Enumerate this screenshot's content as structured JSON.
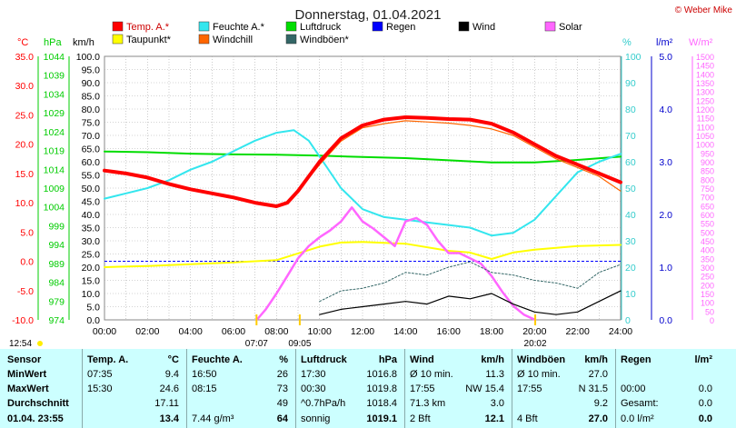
{
  "chart_data": {
    "type": "line",
    "title": "Donnerstag, 01.04.2021",
    "credit": "© Weber Mike",
    "x_ticks": [
      "00:00",
      "02:00",
      "04:00",
      "06:00",
      "08:00",
      "10:00",
      "12:00",
      "14:00",
      "16:00",
      "18:00",
      "20:00",
      "22:00",
      "24:00"
    ],
    "xlim": [
      0,
      24
    ],
    "axes": {
      "temp_c": {
        "label": "°C",
        "ylim": [
          -10,
          35
        ],
        "ticks": [
          "35.0",
          "30.0",
          "25.0",
          "20.0",
          "15.0",
          "10.0",
          "5.0",
          "0.0",
          "-5.0",
          "-10.0"
        ]
      },
      "hpa": {
        "label": "hPa",
        "ylim": [
          974,
          1046
        ],
        "ticks": [
          "1044",
          "1039",
          "1034",
          "1029",
          "1024",
          "1019",
          "1014",
          "1009",
          "1004",
          "999",
          "994",
          "989",
          "984",
          "979",
          "974"
        ]
      },
      "kmh": {
        "label": "km/h",
        "ylim": [
          0,
          100
        ],
        "ticks": [
          "100.0",
          "95.0",
          "90.0",
          "85.0",
          "80.0",
          "75.0",
          "70.0",
          "65.0",
          "60.0",
          "55.0",
          "50.0",
          "45.0",
          "40.0",
          "35.0",
          "30.0",
          "25.0",
          "20.0",
          "15.0",
          "10.0",
          "5.0",
          "0.0"
        ]
      },
      "percent": {
        "label": "%",
        "ylim": [
          0,
          100
        ],
        "ticks": [
          "100",
          "90",
          "80",
          "70",
          "60",
          "50",
          "40",
          "30",
          "20",
          "10",
          "0"
        ]
      },
      "rain": {
        "label": "l/m²",
        "ylim": [
          0,
          5
        ],
        "ticks": [
          "5.0",
          "4.0",
          "3.0",
          "2.0",
          "1.0",
          "0.0"
        ]
      },
      "solar": {
        "label": "W/m²",
        "ylim": [
          0,
          1500
        ],
        "ticks": [
          "1500",
          "1450",
          "1400",
          "1350",
          "1300",
          "1250",
          "1200",
          "1150",
          "1100",
          "1050",
          "1000",
          "950",
          "900",
          "850",
          "800",
          "750",
          "700",
          "650",
          "600",
          "550",
          "500",
          "450",
          "400",
          "350",
          "300",
          "250",
          "200",
          "150",
          "100",
          "50",
          "0"
        ]
      }
    },
    "legend": [
      {
        "name": "Temp. A.*",
        "color": "#ff0000"
      },
      {
        "name": "Feuchte A.*",
        "color": "#33e6ee"
      },
      {
        "name": "Luftdruck",
        "color": "#00dd00"
      },
      {
        "name": "Regen",
        "color": "#0000ff"
      },
      {
        "name": "Wind",
        "color": "#000000"
      },
      {
        "name": "Solar",
        "color": "#ff66ff"
      },
      {
        "name": "Taupunkt*",
        "color": "#ffff00"
      },
      {
        "name": "Windchill",
        "color": "#ff6600"
      },
      {
        "name": "Windböen*",
        "color": "#336666"
      }
    ],
    "series": [
      {
        "name": "Temp. A.*",
        "axis": "temp_c",
        "color": "#ff0000",
        "x": [
          0,
          1,
          2,
          3,
          4,
          5,
          6,
          7,
          8,
          8.5,
          9,
          10,
          11,
          12,
          13,
          14,
          15,
          16,
          17,
          18,
          19,
          20,
          21,
          22,
          23,
          24
        ],
        "y": [
          15.5,
          15.0,
          14.3,
          13.2,
          12.3,
          11.6,
          10.9,
          10.0,
          9.4,
          10.0,
          12.0,
          17.0,
          21.0,
          23.2,
          24.2,
          24.6,
          24.5,
          24.3,
          24.2,
          23.5,
          22.0,
          20.0,
          18.0,
          16.5,
          15.0,
          13.5
        ]
      },
      {
        "name": "Feuchte A.*",
        "axis": "percent",
        "color": "#33e6ee",
        "x": [
          0,
          1,
          2,
          3,
          4,
          5,
          6,
          7,
          8,
          8.8,
          9.5,
          10,
          11,
          12,
          13,
          14,
          15,
          16,
          17,
          18,
          19,
          20,
          21,
          22,
          23,
          24
        ],
        "y": [
          46,
          48,
          50,
          53,
          57,
          60,
          64,
          68,
          71,
          72,
          68,
          62,
          50,
          42,
          39,
          38,
          37,
          36,
          35,
          32,
          33,
          38,
          47,
          56,
          60,
          63
        ]
      },
      {
        "name": "Luftdruck",
        "axis": "hpa",
        "color": "#00dd00",
        "x": [
          0,
          2,
          4,
          6,
          8,
          10,
          12,
          14,
          16,
          18,
          20,
          22,
          24
        ],
        "y": [
          1020.0,
          1019.8,
          1019.4,
          1019.2,
          1019.1,
          1018.9,
          1018.5,
          1018.2,
          1017.6,
          1017.0,
          1017.0,
          1017.7,
          1018.6
        ]
      },
      {
        "name": "Taupunkt*",
        "axis": "temp_c",
        "color": "#ffff00",
        "x": [
          0,
          2,
          4,
          6,
          8,
          10,
          11,
          12,
          14,
          16,
          17,
          18,
          19,
          20,
          22,
          24
        ],
        "y": [
          -1.0,
          -0.8,
          -0.5,
          -0.2,
          0.2,
          2.5,
          3.2,
          3.3,
          3.0,
          1.8,
          1.5,
          0.4,
          1.5,
          2.0,
          2.6,
          2.8
        ]
      },
      {
        "name": "Windchill",
        "axis": "temp_c",
        "color": "#ff6600",
        "x": [
          8.5,
          9,
          10,
          11,
          12,
          13,
          14,
          15,
          16,
          17,
          18,
          19,
          20,
          21,
          22,
          23,
          24
        ],
        "y": [
          10.0,
          12.0,
          16.5,
          20.5,
          22.8,
          23.5,
          24.0,
          23.8,
          23.6,
          23.2,
          22.6,
          21.5,
          19.5,
          17.5,
          16.0,
          14.5,
          12.0
        ]
      },
      {
        "name": "Solar",
        "axis": "solar",
        "color": "#ff66ff",
        "x": [
          7.08,
          7.5,
          8,
          8.5,
          9,
          9.5,
          10,
          10.5,
          11,
          11.5,
          12,
          12.5,
          13,
          13.5,
          14,
          14.5,
          15,
          15.5,
          16,
          16.5,
          17,
          17.5,
          18,
          18.5,
          19,
          19.5,
          20.03
        ],
        "y": [
          0,
          60,
          150,
          250,
          350,
          420,
          470,
          510,
          560,
          640,
          560,
          520,
          470,
          420,
          560,
          580,
          540,
          450,
          380,
          380,
          350,
          320,
          250,
          160,
          80,
          30,
          0
        ]
      },
      {
        "name": "Windböen*",
        "axis": "kmh",
        "color": "#336666",
        "x": [
          10,
          11,
          12,
          13,
          14,
          15,
          16,
          17,
          18,
          19,
          20,
          21,
          22,
          23,
          24
        ],
        "y": [
          7,
          11,
          12,
          14,
          18,
          17,
          20,
          22,
          18,
          17,
          15,
          14,
          12,
          18,
          21
        ]
      },
      {
        "name": "Wind",
        "axis": "kmh",
        "color": "#000000",
        "x": [
          10,
          11,
          12,
          13,
          14,
          15,
          16,
          17,
          18,
          19,
          20,
          21,
          22,
          23,
          24
        ],
        "y": [
          2,
          4,
          5,
          6,
          7,
          6,
          9,
          8,
          10,
          6,
          3,
          2,
          3,
          7,
          11
        ]
      }
    ],
    "bottom_labels": [
      {
        "text": "12:54",
        "at": "left"
      },
      {
        "text": "07:07",
        "x": 7.07
      },
      {
        "text": "09:05",
        "x": 9.08
      },
      {
        "text": "20:02",
        "x": 20.03
      }
    ]
  },
  "table": {
    "row_labels": [
      "Sensor",
      "MinWert",
      "MaxWert",
      "Durchschnitt",
      "01.04. 23:55"
    ],
    "columns": [
      {
        "head": "Temp. A.",
        "unit": "°C",
        "cells": [
          [
            "07:35",
            "9.4"
          ],
          [
            "15:30",
            "24.6"
          ],
          [
            "",
            "17.11"
          ],
          [
            "",
            "13.4"
          ]
        ]
      },
      {
        "head": "Feuchte A.",
        "unit": "%",
        "cells": [
          [
            "16:50",
            "26"
          ],
          [
            "08:15",
            "73"
          ],
          [
            "",
            "49"
          ],
          [
            "7.44 g/m³",
            "64"
          ]
        ]
      },
      {
        "head": "Luftdruck",
        "unit": "hPa",
        "cells": [
          [
            "17:30",
            "1016.8"
          ],
          [
            "00:30",
            "1019.8"
          ],
          [
            "^0.7hPa/h",
            "1018.4"
          ],
          [
            "sonnig",
            "1019.1"
          ]
        ]
      },
      {
        "head": "Wind",
        "unit": "km/h",
        "cells": [
          [
            "Ø 10 min.",
            "11.3"
          ],
          [
            "17:55",
            "NW 15.4"
          ],
          [
            "71.3 km",
            "3.0"
          ],
          [
            "2 Bft",
            "12.1"
          ]
        ]
      },
      {
        "head": "Windböen",
        "unit": "km/h",
        "cells": [
          [
            "Ø 10 min.",
            "27.0"
          ],
          [
            "17:55",
            "N 31.5"
          ],
          [
            "",
            "9.2"
          ],
          [
            "4 Bft",
            "27.0"
          ]
        ]
      },
      {
        "head": "Regen",
        "unit": "l/m²",
        "cells": [
          [
            "",
            ""
          ],
          [
            "00:00",
            "0.0"
          ],
          [
            "Gesamt:",
            "0.0"
          ],
          [
            "0.0 l/m²",
            "0.0"
          ]
        ]
      }
    ]
  }
}
